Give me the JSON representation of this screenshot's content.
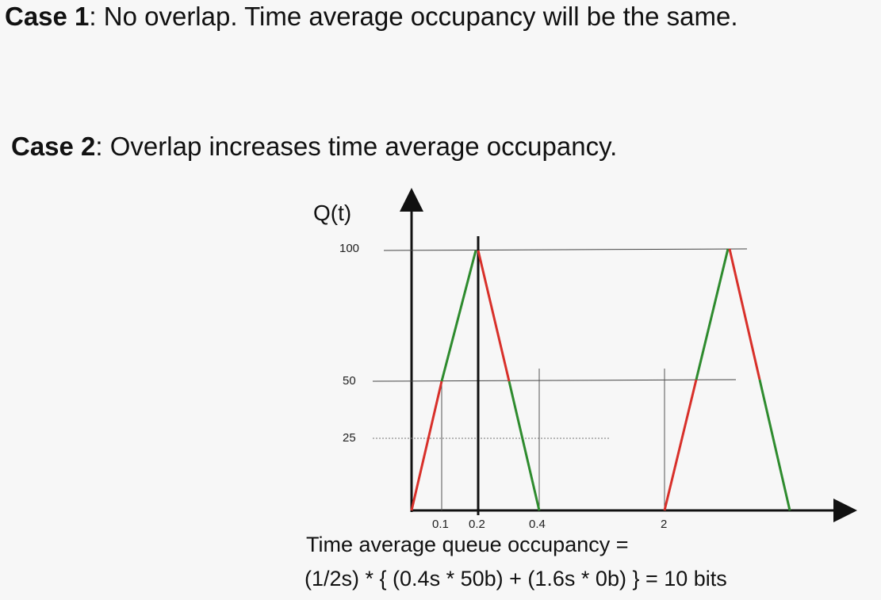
{
  "case1": {
    "label": "Case 1",
    "text": ": No overlap. Time average occupancy will be the same."
  },
  "case2": {
    "label": "Case 2",
    "text": ": Overlap increases time average occupancy."
  },
  "diagram": {
    "y_axis_label": "Q(t)",
    "y_ticks": [
      "100",
      "50",
      "25"
    ],
    "x_ticks": [
      "0.1",
      "0.2",
      "0.4",
      "2"
    ],
    "colors": {
      "rising": "#d8302a",
      "falling": "#2e8b2e",
      "axis": "#111111",
      "guide": "#555555"
    }
  },
  "caption": {
    "line1": "Time average queue occupancy =",
    "line2": "(1/2s) * { (0.4s * 50b) + (1.6s * 0b) } = 10 bits"
  }
}
